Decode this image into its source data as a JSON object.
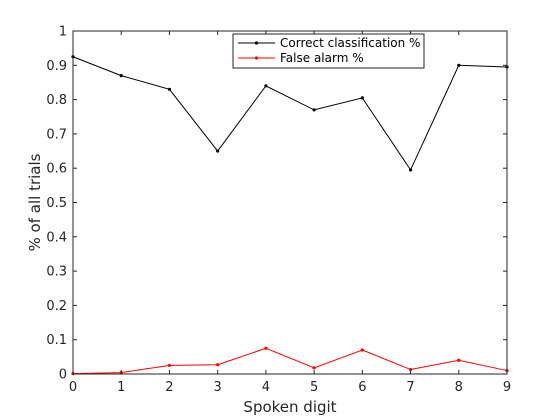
{
  "chart_data": {
    "type": "line",
    "title": "",
    "xlabel": "Spoken digit",
    "ylabel": "% of all trials",
    "xlim": [
      0,
      9
    ],
    "ylim": [
      0,
      1
    ],
    "x": [
      0,
      1,
      2,
      3,
      4,
      5,
      6,
      7,
      8,
      9
    ],
    "xticks": [
      "0",
      "1",
      "2",
      "3",
      "4",
      "5",
      "6",
      "7",
      "8",
      "9"
    ],
    "yticks": [
      "0",
      "0.1",
      "0.2",
      "0.3",
      "0.4",
      "0.5",
      "0.6",
      "0.7",
      "0.8",
      "0.9",
      "1"
    ],
    "grid": false,
    "legend_position": "top-center",
    "series": [
      {
        "name": "Correct classification %",
        "color": "#000000",
        "values": [
          0.925,
          0.87,
          0.83,
          0.65,
          0.84,
          0.77,
          0.805,
          0.595,
          0.9,
          0.895
        ]
      },
      {
        "name": "False alarm %",
        "color": "#ff0000",
        "values": [
          0.001,
          0.004,
          0.025,
          0.027,
          0.075,
          0.018,
          0.07,
          0.013,
          0.04,
          0.01
        ]
      }
    ]
  }
}
